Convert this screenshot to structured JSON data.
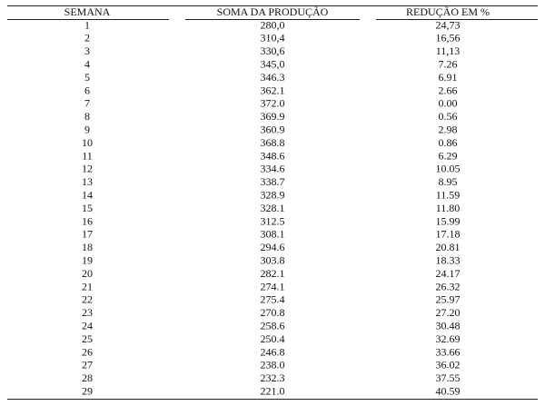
{
  "table": {
    "header": [
      "SEMANA",
      "SOMA DA PRODUÇÃO",
      "REDUÇÃO EM %"
    ],
    "rows": [
      [
        "1",
        "280,0",
        "24,73"
      ],
      [
        "2",
        "310,4",
        "16,56"
      ],
      [
        "3",
        "330,6",
        "11,13"
      ],
      [
        "4",
        "345,0",
        "7.26"
      ],
      [
        "5",
        "346.3",
        "6.91"
      ],
      [
        "6",
        "362.1",
        "2.66"
      ],
      [
        "7",
        "372.0",
        "0.00"
      ],
      [
        "8",
        "369.9",
        "0.56"
      ],
      [
        "9",
        "360.9",
        "2.98"
      ],
      [
        "10",
        "368.8",
        "0.86"
      ],
      [
        "11",
        "348.6",
        "6.29"
      ],
      [
        "12",
        "334.6",
        "10.05"
      ],
      [
        "13",
        "338.7",
        "8.95"
      ],
      [
        "14",
        "328.9",
        "11.59"
      ],
      [
        "15",
        "328.1",
        "11.80"
      ],
      [
        "16",
        "312.5",
        "15.99"
      ],
      [
        "17",
        "308.1",
        "17.18"
      ],
      [
        "18",
        "294.6",
        "20.81"
      ],
      [
        "19",
        "303.8",
        "18.33"
      ],
      [
        "20",
        "282.1",
        "24.17"
      ],
      [
        "21",
        "274.1",
        "26.32"
      ],
      [
        "22",
        "275.4",
        "25.97"
      ],
      [
        "23",
        "270.8",
        "27.20"
      ],
      [
        "24",
        "258.6",
        "30.48"
      ],
      [
        "25",
        "250.4",
        "32.69"
      ],
      [
        "26",
        "246.8",
        "33.66"
      ],
      [
        "27",
        "238.0",
        "36.02"
      ],
      [
        "28",
        "232.3",
        "37.55"
      ],
      [
        "29",
        "221.0",
        "40.59"
      ]
    ]
  }
}
